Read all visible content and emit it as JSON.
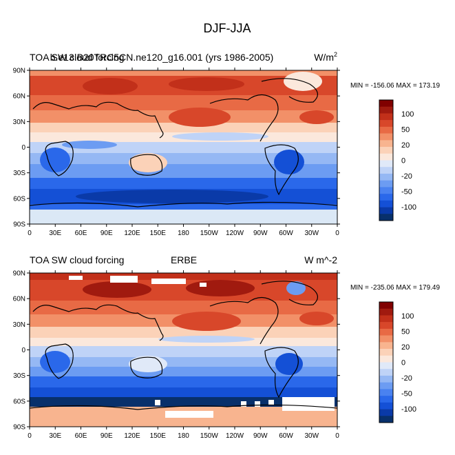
{
  "figure_title": "DJF-JJA",
  "colors": {
    "levels": [
      -100,
      -80,
      -60,
      -50,
      -40,
      -30,
      -20,
      -10,
      0,
      10,
      20,
      30,
      40,
      50,
      60,
      80,
      100
    ],
    "fill": [
      "#08306b",
      "#0a3aa8",
      "#1450d6",
      "#2a68ea",
      "#4a82f0",
      "#6c9cf2",
      "#95b8f4",
      "#bfd3f7",
      "#e0e9f8",
      "#fbe8dc",
      "#fbd2b8",
      "#f8b48f",
      "#f29068",
      "#e86a45",
      "#d8472a",
      "#c2301a",
      "#a01a0f",
      "#800000"
    ]
  },
  "icons": {
    "figure": "contour-map"
  },
  "chart_data": [
    {
      "type": "heatmap",
      "left_title": "TOA SW cloud forcing",
      "center_title": "b.e13.B20TRC5CN.ne120_g16.001 (yrs 1986-2005)",
      "right_title": "W/m",
      "right_title_sup": "2",
      "stats": "MIN = -156.06 MAX = 173.19",
      "x_ticks": [
        "0",
        "30E",
        "60E",
        "90E",
        "120E",
        "150E",
        "180",
        "150W",
        "120W",
        "90W",
        "60W",
        "30W",
        "0"
      ],
      "y_ticks": [
        "90N",
        "60N",
        "30N",
        "0",
        "30S",
        "60S",
        "90S"
      ],
      "colorbar_labels": [
        "100",
        "50",
        "20",
        "0",
        "-20",
        "-50",
        "-100"
      ],
      "xlim": [
        0,
        360
      ],
      "ylim": [
        -90,
        90
      ],
      "missing_data": false
    },
    {
      "type": "heatmap",
      "left_title": "TOA SW cloud forcing",
      "center_title": "ERBE",
      "right_title": "W m^-2",
      "right_title_sup": "",
      "stats": "MIN = -235.06 MAX = 179.49",
      "x_ticks": [
        "0",
        "30E",
        "60E",
        "90E",
        "120E",
        "150E",
        "180",
        "150W",
        "120W",
        "90W",
        "60W",
        "30W",
        "0"
      ],
      "y_ticks": [
        "90N",
        "60N",
        "30N",
        "0",
        "30S",
        "60S",
        "90S"
      ],
      "colorbar_labels": [
        "100",
        "50",
        "20",
        "0",
        "-20",
        "-50",
        "-100"
      ],
      "xlim": [
        0,
        360
      ],
      "ylim": [
        -90,
        90
      ],
      "missing_data": true
    }
  ]
}
